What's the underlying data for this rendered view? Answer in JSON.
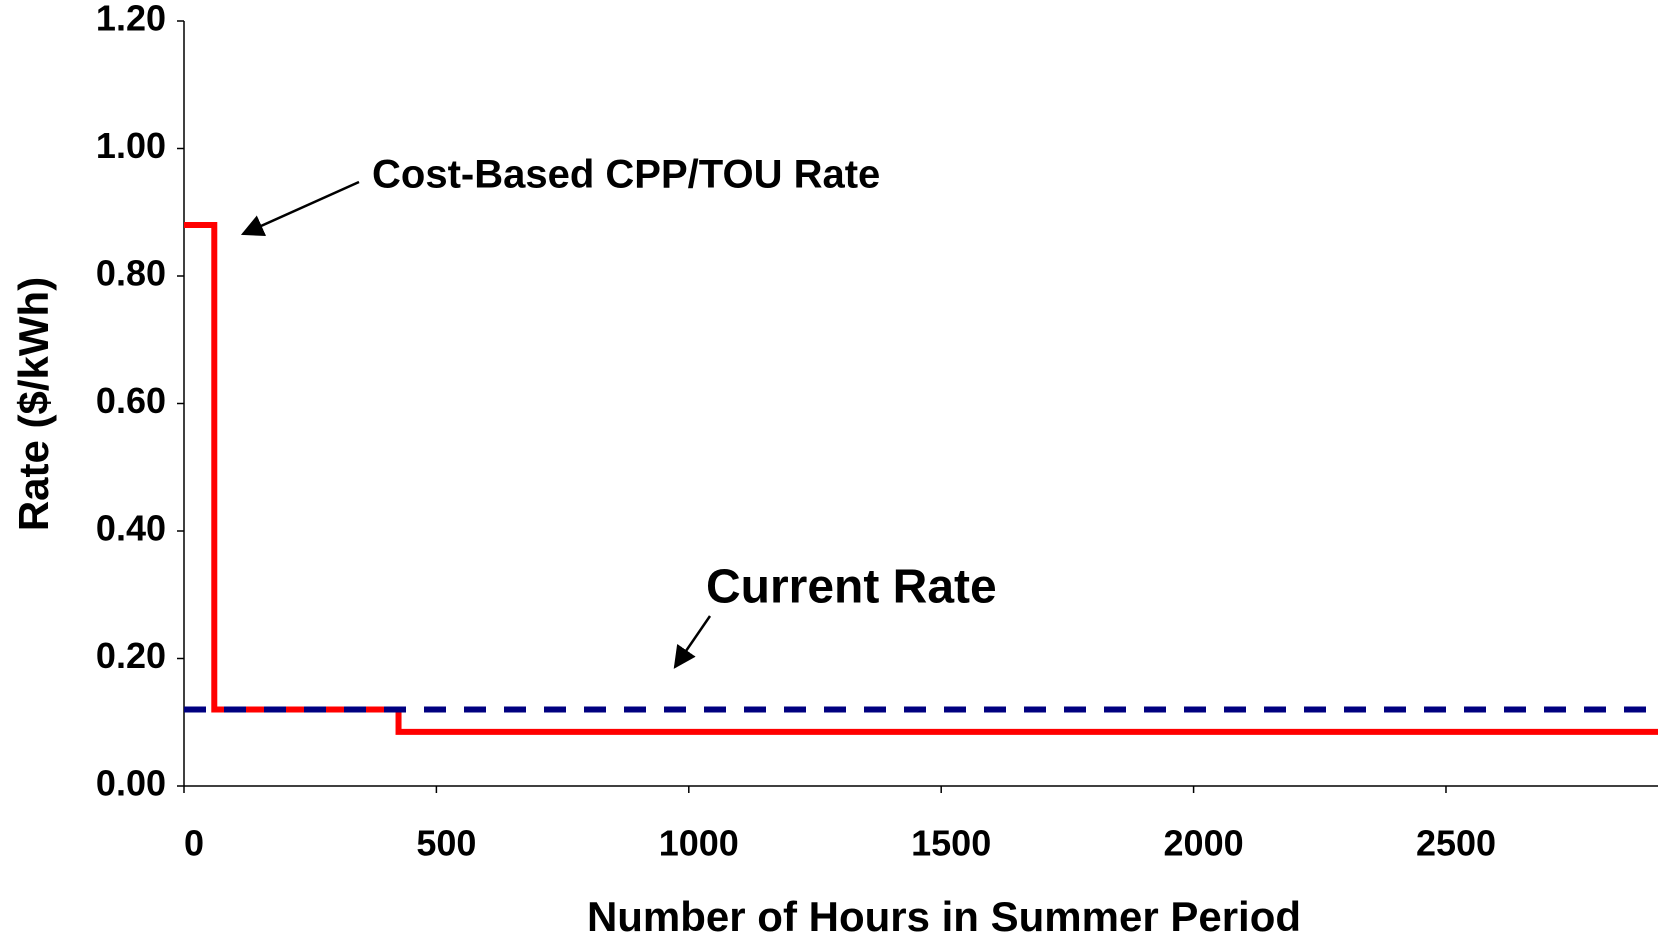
{
  "chart_data": {
    "type": "line",
    "xlabel": "Number of Hours in Summer Period",
    "ylabel": "Rate ($/kWh)",
    "series": [
      {
        "name": "Cost-Based CPP/TOU Rate",
        "color": "#ff0000",
        "style": "solid",
        "x": [
          0,
          60,
          60,
          425,
          425,
          2920
        ],
        "values": [
          0.88,
          0.88,
          0.12,
          0.12,
          0.085,
          0.085
        ]
      },
      {
        "name": "Current Rate",
        "color": "#000080",
        "style": "dashed",
        "x": [
          0,
          2920
        ],
        "values": [
          0.12,
          0.12
        ]
      }
    ],
    "xlim": [
      0,
      2920
    ],
    "ylim": [
      0,
      1.2
    ],
    "xticks": [
      0,
      500,
      1000,
      1500,
      2000,
      2500
    ],
    "yticks": [
      {
        "value": 0,
        "label": "0.00"
      },
      {
        "value": 0.2,
        "label": "0.20"
      },
      {
        "value": 0.4,
        "label": "0.40"
      },
      {
        "value": 0.6,
        "label": "0.60"
      },
      {
        "value": 0.8,
        "label": "0.80"
      },
      {
        "value": 1.0,
        "label": "1.00"
      },
      {
        "value": 1.2,
        "label": "1.20"
      }
    ],
    "grid": false
  }
}
